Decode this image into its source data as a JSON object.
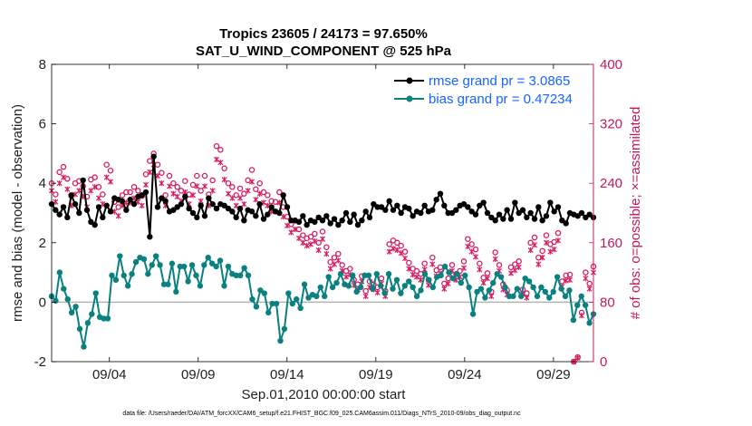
{
  "chart_data": {
    "type": "line",
    "title_line1": "Tropics 23605 / 24173 = 97.650%",
    "title_line2": "SAT_U_WIND_COMPONENT @ 525 hPa",
    "xlabel": "Sep.01,2010 00:00:00 start",
    "ylabel": "rmse and bias (model - observation)",
    "y2label": "# of obs: o=possible; ×=assimilated",
    "xlim": [
      0,
      122
    ],
    "ylim": [
      -2,
      8
    ],
    "y2lim": [
      0,
      400
    ],
    "x_ticks": [
      {
        "x": 13,
        "label": "09/04"
      },
      {
        "x": 33,
        "label": "09/09"
      },
      {
        "x": 53,
        "label": "09/14"
      },
      {
        "x": 73,
        "label": "09/19"
      },
      {
        "x": 93,
        "label": "09/24"
      },
      {
        "x": 113,
        "label": "09/29"
      }
    ],
    "y_ticks": [
      {
        "v": -2,
        "label": "-2"
      },
      {
        "v": 0,
        "label": "0"
      },
      {
        "v": 2,
        "label": "2"
      },
      {
        "v": 4,
        "label": "4"
      },
      {
        "v": 6,
        "label": "6"
      },
      {
        "v": 8,
        "label": "8"
      }
    ],
    "y2_ticks": [
      {
        "v": 0,
        "label": "0"
      },
      {
        "v": 80,
        "label": "80"
      },
      {
        "v": 160,
        "label": "160"
      },
      {
        "v": 240,
        "label": "240"
      },
      {
        "v": 320,
        "label": "320"
      },
      {
        "v": 400,
        "label": "400"
      }
    ],
    "footnote": "data file: /Users/raeder/DAI/ATM_forcXX/CAM6_setup/f.e21.FHIST_BGC.f09_025.CAM6assim.011/Diags_NTrS_2010-09/obs_diag_output.nc",
    "colors": {
      "rmse": "#000000",
      "bias": "#0a8080",
      "obs": "#d81b60",
      "legend_text": "#1565ff",
      "zero_line": "#b3b3b3"
    },
    "series": [
      {
        "name": "rmse grand pr = 3.0865",
        "key": "rmse",
        "values": [
          3.3,
          3.1,
          2.95,
          3.2,
          2.85,
          3.6,
          3.3,
          3.0,
          4.1,
          3.1,
          2.7,
          2.6,
          3.2,
          2.85,
          3.25,
          3.05,
          3.5,
          3.45,
          3.4,
          3.1,
          3.45,
          3.3,
          3.55,
          3.6,
          3.7,
          2.2,
          4.9,
          3.2,
          3.5,
          3.4,
          3.05,
          3.1,
          3.2,
          3.3,
          3.55,
          3.15,
          3.0,
          2.85,
          3.25,
          2.9,
          3.5,
          3.3,
          3.15,
          3.3,
          3.25,
          3.15,
          3.05,
          2.85,
          3.15,
          2.75,
          3.1,
          3.05,
          2.9,
          3.3,
          2.8,
          2.95,
          3.2,
          3.05,
          3.0,
          3.6,
          3.2,
          2.75,
          2.75,
          2.7,
          2.9,
          2.6,
          2.75,
          2.7,
          2.85,
          2.75,
          2.9,
          2.65,
          2.8,
          2.6,
          2.75,
          3.0,
          2.7,
          2.95,
          2.6,
          2.75,
          3.05,
          2.85,
          3.3,
          3.2,
          3.2,
          3.1,
          3.4,
          3.1,
          3.25,
          3.0,
          3.2,
          3.15,
          2.9,
          3.05,
          3.0,
          3.25,
          3.05,
          3.1,
          3.45,
          3.65,
          3.25,
          3.0,
          3.0,
          3.1,
          3.25,
          3.3,
          3.2,
          3.05,
          2.95,
          3.25,
          3.35,
          3.0,
          2.85,
          2.75,
          2.95,
          2.8,
          3.1,
          2.8,
          3.35,
          3.0,
          3.1,
          2.85,
          3.0,
          2.8,
          3.2,
          2.75,
          2.9,
          3.35,
          3.05,
          3.2,
          2.75,
          2.65,
          3.0,
          2.95,
          2.9,
          3.0,
          2.85,
          2.95,
          2.85
        ]
      },
      {
        "name": "bias grand pr = 0.47234",
        "key": "bias",
        "values": [
          0.2,
          0.05,
          1.0,
          0.45,
          0.1,
          -0.35,
          -0.15,
          -0.9,
          -1.5,
          -0.7,
          -0.4,
          0.3,
          -0.5,
          -0.55,
          -0.55,
          0.9,
          0.75,
          1.55,
          0.9,
          0.55,
          0.95,
          1.35,
          1.5,
          1.45,
          0.95,
          1.25,
          1.55,
          1.25,
          0.6,
          0.6,
          1.3,
          0.35,
          1.2,
          1.2,
          0.7,
          1.25,
          0.9,
          0.55,
          1.25,
          1.5,
          1.3,
          1.2,
          1.4,
          0.55,
          1.2,
          0.95,
          0.9,
          0.9,
          1.15,
          0.9,
          0.1,
          -0.15,
          0.4,
          0.3,
          -0.35,
          -0.05,
          -0.05,
          -1.3,
          -0.9,
          0.3,
          -0.05,
          0.1,
          -0.2,
          0.6,
          0.15,
          0.25,
          0.2,
          0.5,
          0.2,
          0.85,
          0.5,
          0.65,
          0.95,
          0.6,
          0.55,
          0.9,
          0.35,
          0.5,
          0.9,
          0.9,
          0.45,
          0.95,
          0.55,
          0.3,
          0.95,
          0.45,
          0.75,
          0.3,
          0.55,
          0.7,
          0.5,
          0.2,
          0.4,
          0.95,
          0.75,
          0.5,
          0.85,
          0.9,
          1.2,
          1.0,
          0.8,
          0.95,
          0.65,
          0.9,
          0.5,
          -0.4,
          0.35,
          0.45,
          0.15,
          0.4,
          0.65,
          0.95,
          0.85,
          0.5,
          0.2,
          0.2,
          0.45,
          0.2,
          0.8,
          0.7,
          0.5,
          0.2,
          0.5,
          0.35,
          0.15,
          0.35,
          0.85,
          0.45,
          0.2,
          0.4,
          -0.6,
          -0.1,
          0.2,
          -0.1,
          -0.7,
          -0.4
        ]
      },
      {
        "name": "obs possible",
        "key": "obs_possible",
        "values": [
          240,
          225,
          255,
          262,
          246,
          223,
          240,
          243,
          236,
          222,
          245,
          248,
          235,
          225,
          265,
          257,
          215,
          208,
          224,
          228,
          228,
          235,
          230,
          223,
          252,
          270,
          280,
          265,
          254,
          224,
          250,
          240,
          235,
          230,
          243,
          225,
          238,
          250,
          230,
          250,
          225,
          244,
          290,
          285,
          260,
          240,
          235,
          224,
          233,
          226,
          244,
          258,
          232,
          240,
          228,
          224,
          216,
          215,
          228,
          208,
          195,
          185,
          190,
          178,
          170,
          166,
          168,
          172,
          160,
          175,
          154,
          134,
          140,
          145,
          130,
          122,
          125,
          110,
          104,
          115,
          95,
          108,
          104,
          100,
          112,
          95,
          158,
          163,
          160,
          156,
          148,
          133,
          125,
          122,
          118,
          132,
          110,
          140,
          123,
          127,
          105,
          112,
          130,
          118,
          122,
          135,
          165,
          158,
          151,
          132,
          113,
          119,
          94,
          147,
          130,
          104,
          96,
          127,
          131,
          135,
          97,
          92,
          160,
          167,
          140,
          149,
          170,
          158,
          161,
          173,
          108,
          116,
          117,
          0,
          6,
          66,
          120,
          105,
          128
        ]
      },
      {
        "name": "obs assimilated",
        "key": "obs_assimilated",
        "values": [
          230,
          215,
          240,
          248,
          232,
          210,
          225,
          230,
          222,
          208,
          230,
          235,
          220,
          212,
          248,
          242,
          202,
          196,
          210,
          214,
          214,
          220,
          215,
          210,
          238,
          255,
          265,
          250,
          240,
          210,
          236,
          226,
          222,
          216,
          228,
          212,
          224,
          236,
          216,
          236,
          210,
          230,
          272,
          268,
          245,
          226,
          220,
          210,
          220,
          212,
          230,
          242,
          218,
          226,
          214,
          210,
          202,
          202,
          214,
          195,
          183,
          174,
          178,
          166,
          160,
          156,
          158,
          162,
          150,
          165,
          145,
          125,
          131,
          136,
          122,
          114,
          117,
          103,
          97,
          108,
          88,
          100,
          97,
          93,
          105,
          88,
          148,
          152,
          150,
          146,
          139,
          125,
          117,
          114,
          110,
          124,
          103,
          131,
          115,
          119,
          98,
          105,
          122,
          110,
          114,
          126,
          155,
          148,
          141,
          124,
          106,
          112,
          88,
          138,
          122,
          97,
          90,
          119,
          123,
          127,
          91,
          86,
          150,
          157,
          131,
          140,
          160,
          148,
          151,
          163,
          101,
          109,
          110,
          0,
          5,
          62,
          112,
          98,
          120
        ]
      }
    ]
  }
}
